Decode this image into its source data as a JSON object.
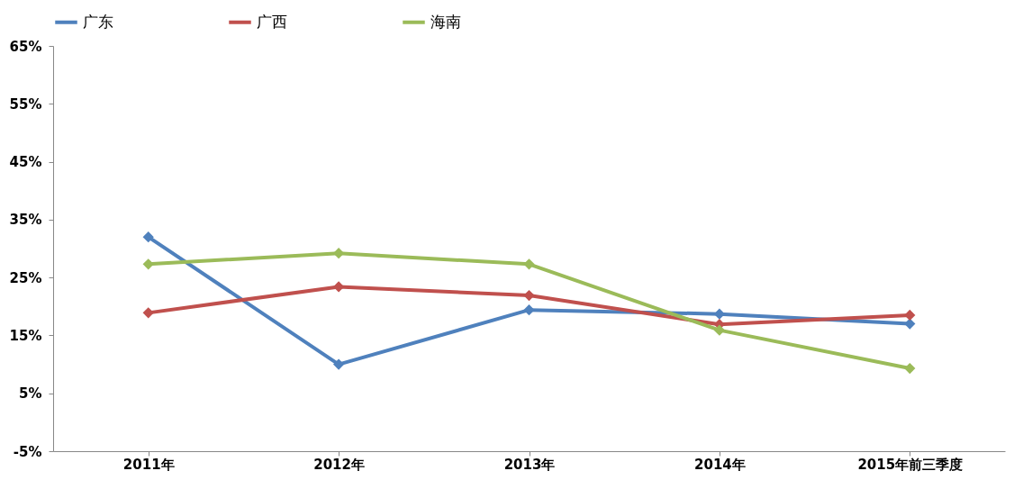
{
  "chart_data": {
    "type": "line",
    "categories": [
      "2011年",
      "2012年",
      "2013年",
      "2014年",
      "2015年前三季度"
    ],
    "series": [
      {
        "name": "广东",
        "color": "#4f81bd",
        "values": [
          32,
          10,
          19.4,
          18.7,
          17
        ]
      },
      {
        "name": "广西",
        "color": "#c0504d",
        "values": [
          18.9,
          23.4,
          21.9,
          16.9,
          18.5
        ]
      },
      {
        "name": "海南",
        "color": "#9bbb59",
        "values": [
          27.3,
          29.2,
          27.3,
          15.9,
          9.3
        ]
      }
    ],
    "ylim": [
      -5,
      65
    ],
    "yticks": [
      {
        "value": -5,
        "label": "-5%"
      },
      {
        "value": 5,
        "label": "5%"
      },
      {
        "value": 15,
        "label": "15%"
      },
      {
        "value": 25,
        "label": "25%"
      },
      {
        "value": 35,
        "label": "35%"
      },
      {
        "value": 45,
        "label": "45%"
      },
      {
        "value": 55,
        "label": "55%"
      },
      {
        "value": 65,
        "label": "65%"
      }
    ],
    "grid": false,
    "legend": "top",
    "marker": "diamond",
    "line_style": "solid"
  }
}
